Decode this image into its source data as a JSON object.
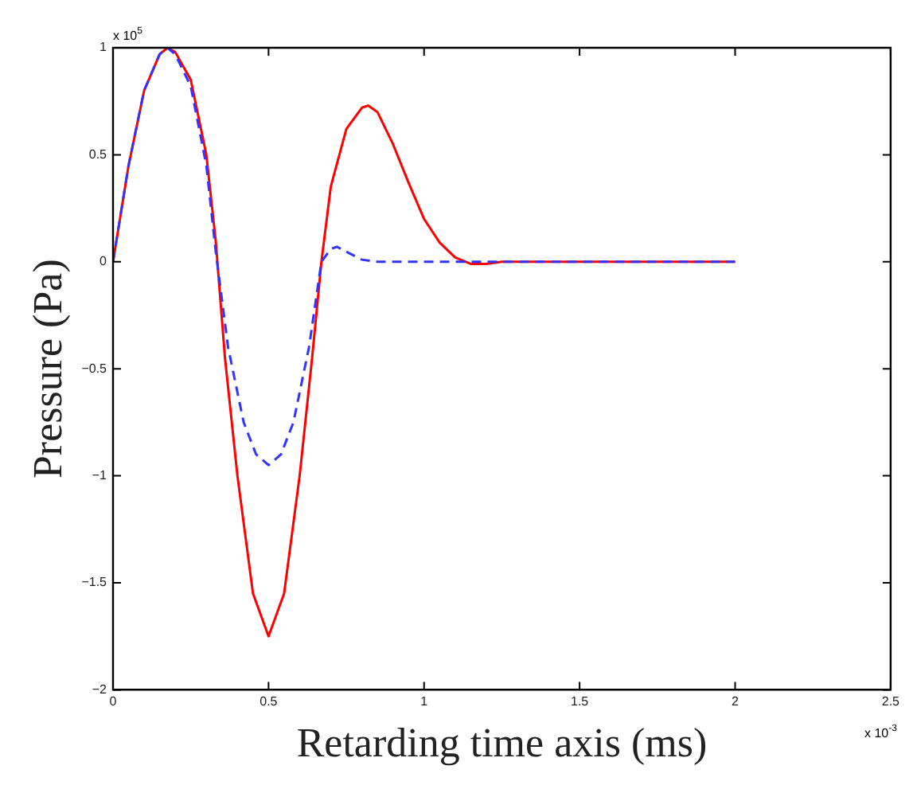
{
  "chart_data": {
    "type": "line",
    "xlabel": "Retarding time axis (ms)",
    "ylabel": "Pressure (Pa)",
    "xlim": [
      0,
      2.5
    ],
    "xticks": [
      0,
      0.5,
      1,
      1.5,
      2,
      2.5
    ],
    "ylim": [
      -2,
      1
    ],
    "yticks": [
      -2,
      -1.5,
      -1,
      -0.5,
      0,
      0.5,
      1
    ],
    "grid": false,
    "legend": false,
    "marker": "none",
    "annotations": [
      "x 10$^{5}$",
      "x 10$^{-3}$"
    ],
    "series": [
      {
        "color": "#ff0000",
        "line_style": "solid",
        "x": [
          0,
          0.05,
          0.1,
          0.15,
          0.175,
          0.2,
          0.25,
          0.3,
          0.33,
          0.36,
          0.4,
          0.45,
          0.5,
          0.55,
          0.6,
          0.64,
          0.67,
          0.7,
          0.75,
          0.8,
          0.82,
          0.85,
          0.9,
          0.95,
          1.0,
          1.05,
          1.1,
          1.15,
          1.2,
          1.25,
          2.0
        ],
        "values": [
          0,
          0.45,
          0.8,
          0.97,
          1,
          0.98,
          0.85,
          0.5,
          0.1,
          -0.45,
          -1.0,
          -1.55,
          -1.75,
          -1.55,
          -1.0,
          -0.45,
          0,
          0.35,
          0.62,
          0.72,
          0.73,
          0.7,
          0.55,
          0.37,
          0.2,
          0.09,
          0.02,
          -0.01,
          -0.01,
          0,
          0
        ]
      },
      {
        "color": "#3333ff",
        "line_style": "dashed",
        "x": [
          0,
          0.05,
          0.1,
          0.15,
          0.175,
          0.2,
          0.25,
          0.3,
          0.33,
          0.37,
          0.42,
          0.46,
          0.5,
          0.54,
          0.58,
          0.63,
          0.67,
          0.7,
          0.72,
          0.76,
          0.8,
          0.85,
          2.0
        ],
        "values": [
          0,
          0.45,
          0.8,
          0.97,
          1,
          0.97,
          0.82,
          0.45,
          0.05,
          -0.4,
          -0.75,
          -0.9,
          -0.95,
          -0.9,
          -0.75,
          -0.4,
          0,
          0.06,
          0.07,
          0.04,
          0.01,
          0,
          0
        ]
      }
    ]
  }
}
